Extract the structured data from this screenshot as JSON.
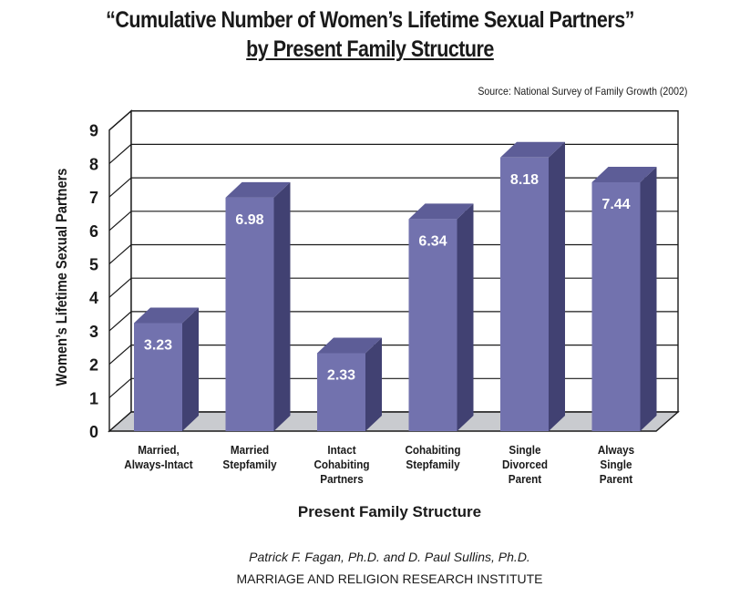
{
  "title_line1": "“Cumulative Number of Women’s Lifetime Sexual Partners”",
  "title_line2": "by Present Family Structure",
  "source": "Source: National Survey of Family Growth (2002)",
  "footer": {
    "authors": "Patrick F. Fagan, Ph.D. and D. Paul Sullins, Ph.D.",
    "institute": "MARRIAGE AND RELIGION RESEARCH INSTITUTE"
  },
  "colors": {
    "bar_front": "#7272ae",
    "bar_top": "#5d5d97",
    "bar_side": "#414172",
    "floor": "#c9cbcf"
  },
  "chart_data": {
    "type": "bar",
    "title": "“Cumulative Number of Women’s Lifetime Sexual Partners” by Present Family Structure",
    "xlabel": "Present Family Structure",
    "ylabel": "Women’s Lifetime Sexual Partners",
    "categories": [
      "Married,\nAlways-Intact",
      "Married\nStepfamily",
      "Intact\nCohabiting\nPartners",
      "Cohabiting\nStepfamily",
      "Single\nDivorced\nParent",
      "Always\nSingle\nParent"
    ],
    "values": [
      3.23,
      6.98,
      2.33,
      6.34,
      8.18,
      7.44
    ],
    "value_labels": [
      "3.23",
      "6.98",
      "2.33",
      "6.34",
      "8.18",
      "7.44"
    ],
    "ylim": [
      0,
      9
    ],
    "yticks": [
      "0",
      "1",
      "2",
      "3",
      "4",
      "5",
      "6",
      "7",
      "8",
      "9"
    ],
    "grid": true
  }
}
